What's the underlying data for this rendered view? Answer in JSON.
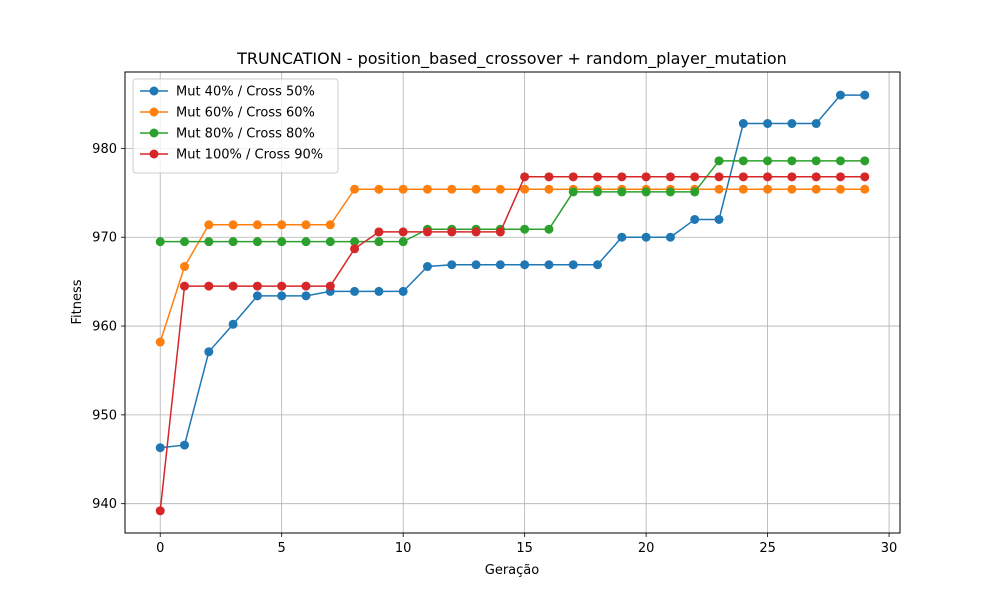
{
  "chart_data": {
    "type": "line",
    "title": "TRUNCATION - position_based_crossover + random_player_mutation",
    "xlabel": "Geração",
    "ylabel": "Fitness",
    "xlim": [
      -1.45,
      30.45
    ],
    "ylim": [
      936.7,
      988.6
    ],
    "xticks": [
      0,
      5,
      10,
      15,
      20,
      25,
      30
    ],
    "yticks": [
      940,
      950,
      960,
      970,
      980
    ],
    "grid": true,
    "legend_position": "top-left",
    "x": [
      0,
      1,
      2,
      3,
      4,
      5,
      6,
      7,
      8,
      9,
      10,
      11,
      12,
      13,
      14,
      15,
      16,
      17,
      18,
      19,
      20,
      21,
      22,
      23,
      24,
      25,
      26,
      27,
      28,
      29
    ],
    "series": [
      {
        "name": "Mut 40% / Cross 50%",
        "color": "#1f77b4",
        "values": [
          946.3,
          946.6,
          957.1,
          960.2,
          963.4,
          963.4,
          963.4,
          963.9,
          963.9,
          963.9,
          963.9,
          966.7,
          966.9,
          966.9,
          966.9,
          966.9,
          966.9,
          966.9,
          966.9,
          970.0,
          970.0,
          970.0,
          972.0,
          972.0,
          982.8,
          982.8,
          982.8,
          982.8,
          986.0,
          986.0
        ]
      },
      {
        "name": "Mut 60% / Cross 60%",
        "color": "#ff7f0e",
        "values": [
          958.2,
          966.7,
          971.4,
          971.4,
          971.4,
          971.4,
          971.4,
          971.4,
          975.4,
          975.4,
          975.4,
          975.4,
          975.4,
          975.4,
          975.4,
          975.4,
          975.4,
          975.4,
          975.4,
          975.4,
          975.4,
          975.4,
          975.4,
          975.4,
          975.4,
          975.4,
          975.4,
          975.4,
          975.4,
          975.4
        ]
      },
      {
        "name": "Mut 80% / Cross 80%",
        "color": "#2ca02c",
        "values": [
          969.5,
          969.5,
          969.5,
          969.5,
          969.5,
          969.5,
          969.5,
          969.5,
          969.5,
          969.5,
          969.5,
          970.9,
          970.9,
          970.9,
          970.9,
          970.9,
          970.9,
          975.1,
          975.1,
          975.1,
          975.1,
          975.1,
          975.1,
          978.6,
          978.6,
          978.6,
          978.6,
          978.6,
          978.6,
          978.6
        ]
      },
      {
        "name": "Mut 100% / Cross 90%",
        "color": "#d62728",
        "values": [
          939.2,
          964.5,
          964.5,
          964.5,
          964.5,
          964.5,
          964.5,
          964.5,
          968.7,
          970.6,
          970.6,
          970.6,
          970.6,
          970.6,
          970.6,
          976.8,
          976.8,
          976.8,
          976.8,
          976.8,
          976.8,
          976.8,
          976.8,
          976.8,
          976.8,
          976.8,
          976.8,
          976.8,
          976.8,
          976.8
        ]
      }
    ]
  }
}
